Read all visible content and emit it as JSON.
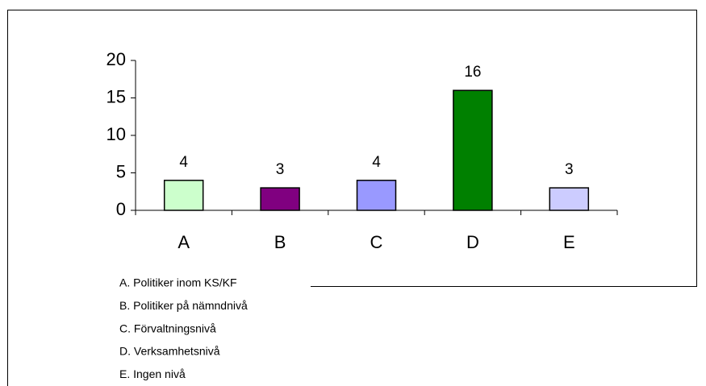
{
  "chart_data": {
    "type": "bar",
    "categories": [
      "A",
      "B",
      "C",
      "D",
      "E"
    ],
    "values": [
      4,
      3,
      4,
      16,
      3
    ],
    "colors": [
      "#ccffcc",
      "#800080",
      "#9999ff",
      "#008000",
      "#ccccff"
    ],
    "ylim": [
      0,
      20
    ],
    "yticks": [
      0,
      5,
      10,
      15,
      20
    ],
    "legend_notes": [
      "A. Politiker inom KS/KF",
      "B. Politiker på nämndnivå",
      "C. Förvaltningsnivå",
      "D. Verksamhetsnivå",
      "E. Ingen nivå"
    ]
  }
}
